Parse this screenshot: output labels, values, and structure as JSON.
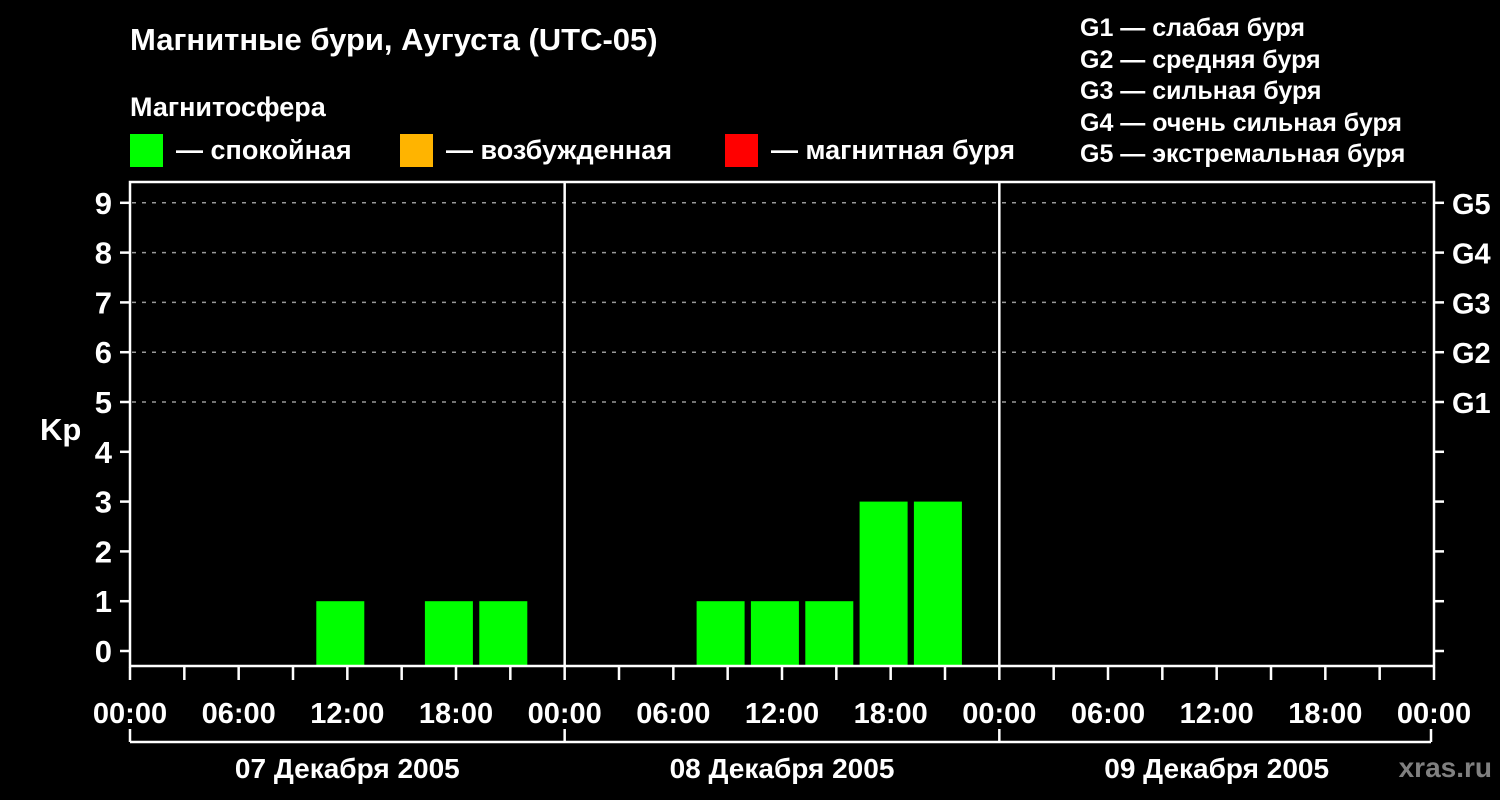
{
  "header": {
    "title": "Магнитные бури, Аугуста (UTC-05)",
    "subtitle": "Магнитосфера"
  },
  "legend": {
    "items": [
      {
        "id": "quiet",
        "label": "— спокойная",
        "color": "#00ff00"
      },
      {
        "id": "excited",
        "label": "— возбужденная",
        "color": "#ffb400"
      },
      {
        "id": "storm",
        "label": "— магнитная буря",
        "color": "#ff0000"
      }
    ]
  },
  "g_legend": {
    "items": [
      "G1 — слабая буря",
      "G2 — средняя буря",
      "G3 — сильная буря",
      "G4 — очень сильная буря",
      "G5 — экстремальная буря"
    ]
  },
  "watermark": "xras.ru",
  "chart_data": {
    "type": "bar",
    "title": "Магнитные бури, Аугуста (UTC-05)",
    "subtitle": "Магнитосфера",
    "ylabel": "Kp",
    "ylim": [
      0,
      9
    ],
    "y_ticks": [
      0,
      1,
      2,
      3,
      4,
      5,
      6,
      7,
      8,
      9
    ],
    "gridlines_at": [
      5,
      6,
      7,
      8,
      9
    ],
    "grid": "dotted horizontal",
    "legend_position": "top",
    "background_color": "#000000",
    "bar_color": "#00ff00",
    "grid_color": "#999999",
    "axis_color": "#ffffff",
    "interval_hours": 3,
    "x_tick_label_cycle": [
      "00:00",
      "06:00",
      "12:00",
      "18:00"
    ],
    "final_x_tick_label": "00:00",
    "right_axis_labels": [
      {
        "kp": 5,
        "label": "G1"
      },
      {
        "kp": 6,
        "label": "G2"
      },
      {
        "kp": 7,
        "label": "G3"
      },
      {
        "kp": 8,
        "label": "G4"
      },
      {
        "kp": 9,
        "label": "G5"
      }
    ],
    "days": [
      {
        "date": "07 Декабря 2005",
        "kp_by_interval": [
          0,
          0,
          0,
          1,
          0,
          1,
          1,
          0
        ]
      },
      {
        "date": "08 Декабря 2005",
        "kp_by_interval": [
          0,
          0,
          1,
          1,
          1,
          3,
          3,
          0
        ]
      },
      {
        "date": "09 Декабря 2005",
        "kp_by_interval": [
          0,
          0,
          0,
          0,
          0,
          0,
          0,
          0
        ]
      }
    ]
  }
}
